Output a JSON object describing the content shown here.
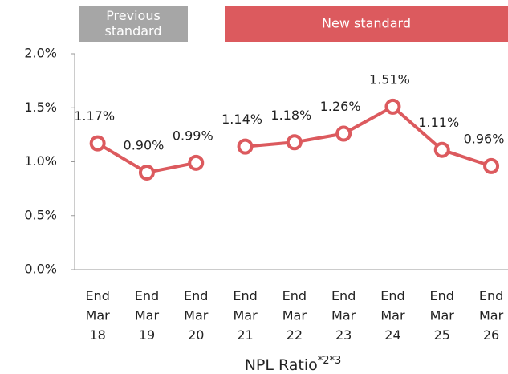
{
  "chart_data": {
    "type": "line",
    "title": "NPL Ratio",
    "title_note": "*2*3",
    "categories": [
      "End Mar 18",
      "End Mar 19",
      "End Mar 20",
      "End Mar 21",
      "End Mar 22",
      "End Mar 23",
      "End Mar 24",
      "End Mar 25",
      "End Mar 26"
    ],
    "series": [
      {
        "name": "Previous standard",
        "color": "#dc5a5e",
        "values": [
          1.17,
          0.9,
          0.99,
          null,
          null,
          null,
          null,
          null,
          null
        ],
        "value_labels": [
          "1.17%",
          "0.90%",
          "0.99%",
          null,
          null,
          null,
          null,
          null,
          null
        ]
      },
      {
        "name": "New standard",
        "color": "#dc5a5e",
        "values": [
          null,
          null,
          null,
          1.14,
          1.18,
          1.26,
          1.51,
          1.11,
          0.96
        ],
        "value_labels": [
          null,
          null,
          null,
          "1.14%",
          "1.18%",
          "1.26%",
          "1.51%",
          "1.11%",
          "0.96%"
        ]
      }
    ],
    "header_colors": [
      "#a6a6a6",
      "#dc5a5e"
    ],
    "ylim": [
      0,
      2
    ],
    "yticks": [
      {
        "value": 0,
        "label": "0.0%"
      },
      {
        "value": 0.5,
        "label": "0.5%"
      },
      {
        "value": 1,
        "label": "1.0%"
      },
      {
        "value": 1.5,
        "label": "1.5%"
      },
      {
        "value": 2,
        "label": "2.0%"
      }
    ],
    "grid": false
  }
}
